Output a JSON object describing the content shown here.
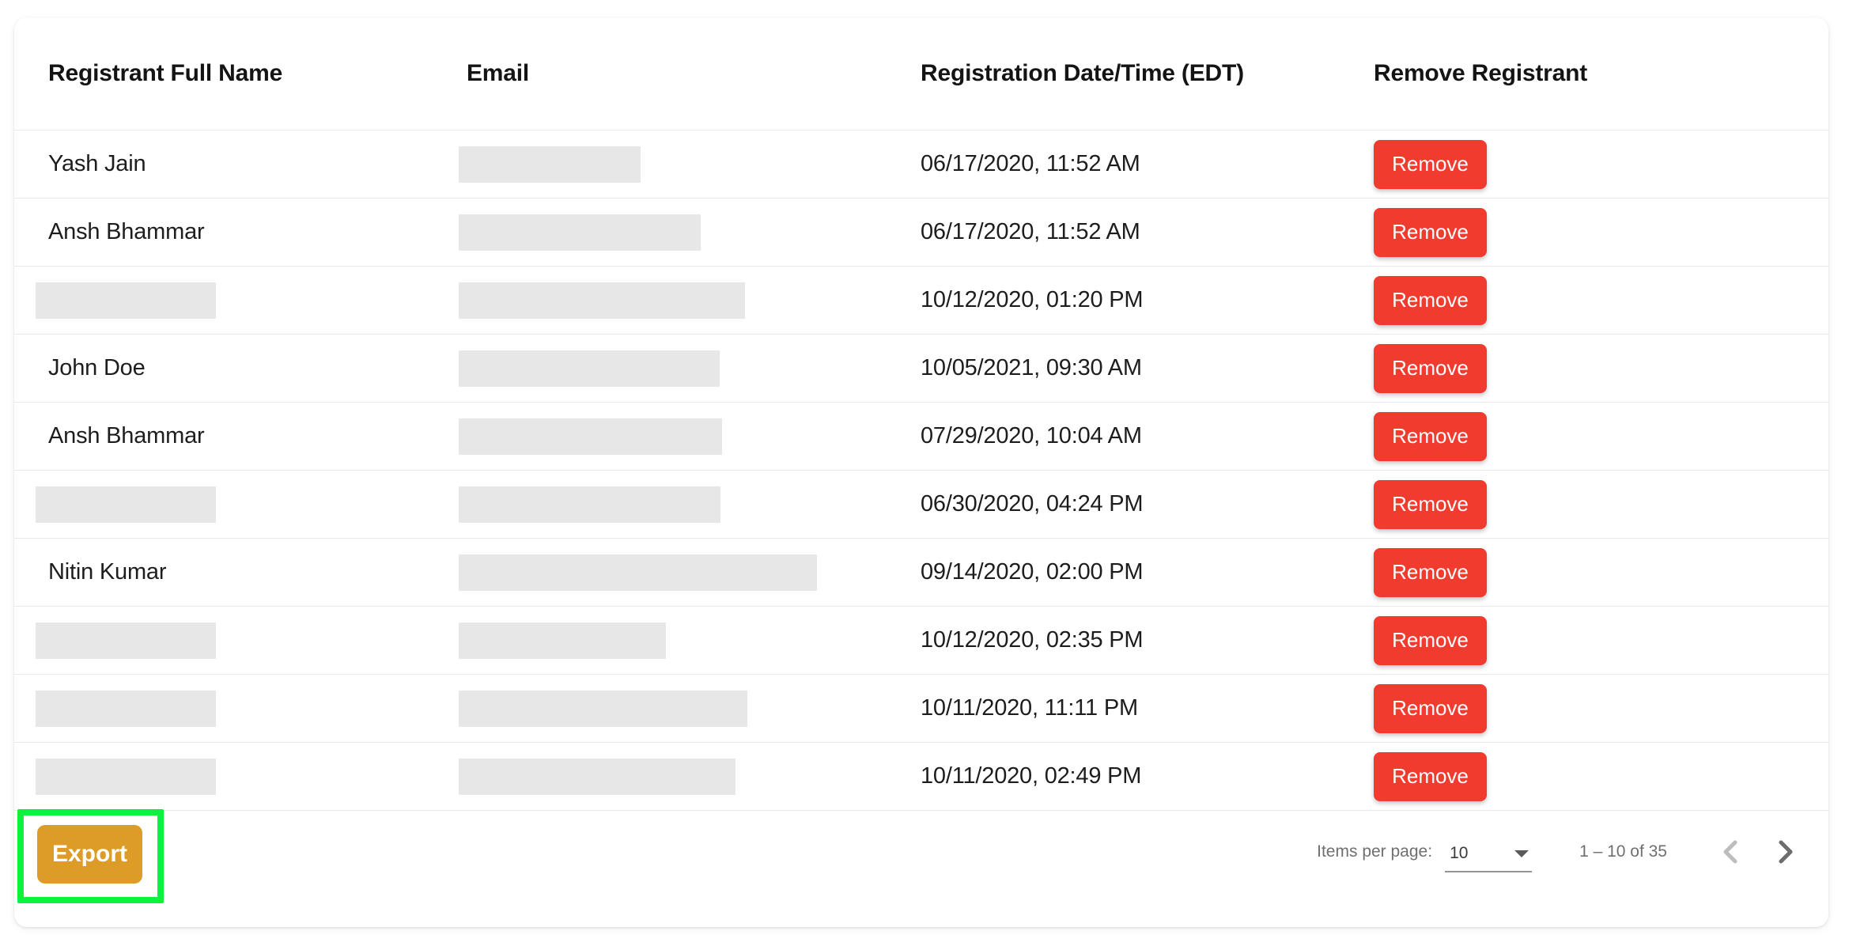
{
  "table": {
    "columns": [
      "Registrant Full Name",
      "Email",
      "Registration Date/Time (EDT)",
      "Remove Registrant"
    ],
    "remove_button_label": "Remove",
    "rows": [
      {
        "name": "Yash Jain",
        "name_redacted": false,
        "email_redacted": true,
        "email_box_width": 230,
        "datetime": "06/17/2020, 11:52 AM"
      },
      {
        "name": "Ansh Bhammar",
        "name_redacted": false,
        "email_redacted": true,
        "email_box_width": 306,
        "datetime": "06/17/2020, 11:52 AM"
      },
      {
        "name": null,
        "name_redacted": true,
        "email_redacted": true,
        "email_box_width": 362,
        "datetime": "10/12/2020, 01:20 PM"
      },
      {
        "name": "John Doe",
        "name_redacted": false,
        "email_redacted": true,
        "email_box_width": 330,
        "datetime": "10/05/2021, 09:30 AM"
      },
      {
        "name": "Ansh Bhammar",
        "name_redacted": false,
        "email_redacted": true,
        "email_box_width": 333,
        "datetime": "07/29/2020, 10:04 AM"
      },
      {
        "name": null,
        "name_redacted": true,
        "email_redacted": true,
        "email_box_width": 331,
        "datetime": "06/30/2020, 04:24 PM"
      },
      {
        "name": "Nitin Kumar",
        "name_redacted": false,
        "email_redacted": true,
        "email_box_width": 453,
        "datetime": "09/14/2020, 02:00 PM"
      },
      {
        "name": null,
        "name_redacted": true,
        "email_redacted": true,
        "email_box_width": 262,
        "datetime": "10/12/2020, 02:35 PM"
      },
      {
        "name": null,
        "name_redacted": true,
        "email_redacted": true,
        "email_box_width": 365,
        "datetime": "10/11/2020, 11:11 PM"
      },
      {
        "name": null,
        "name_redacted": true,
        "email_redacted": true,
        "email_box_width": 350,
        "datetime": "10/11/2020, 02:49 PM"
      }
    ]
  },
  "footer": {
    "export_label": "Export"
  },
  "paginator": {
    "items_per_page_label": "Items per page:",
    "page_size": "10",
    "range_label": "1 – 10 of 35",
    "prev_icon": "chevron-left-icon",
    "next_icon": "chevron-right-icon",
    "prev_enabled": false,
    "next_enabled": true
  },
  "colors": {
    "remove_red": "#f03b2e",
    "export_orange": "#dd9c27",
    "annotation_green": "#0ef23c",
    "redaction_gray": "#e7e7e7"
  }
}
